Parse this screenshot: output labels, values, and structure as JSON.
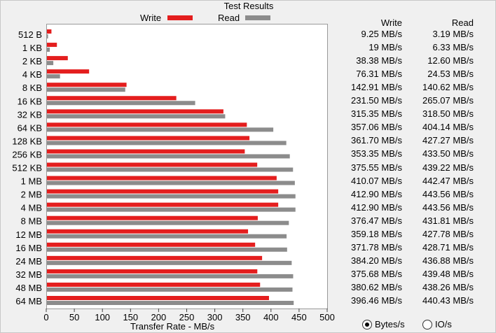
{
  "title": "Test Results",
  "legend": {
    "write": "Write",
    "read": "Read"
  },
  "colors": {
    "write": "#e41e1e",
    "read": "#8c8c8c"
  },
  "chart_data": {
    "type": "bar",
    "orientation": "horizontal",
    "title": "Test Results",
    "xlabel": "Transfer Rate - MB/s",
    "xlim": [
      0,
      500
    ],
    "xticks": [
      0,
      50,
      100,
      150,
      200,
      250,
      300,
      350,
      400,
      450,
      500
    ],
    "categories": [
      "512 B",
      "1 KB",
      "2 KB",
      "4 KB",
      "8 KB",
      "16 KB",
      "32 KB",
      "64 KB",
      "128 KB",
      "256 KB",
      "512 KB",
      "1 MB",
      "2 MB",
      "4 MB",
      "8 MB",
      "12 MB",
      "16 MB",
      "24 MB",
      "32 MB",
      "48 MB",
      "64 MB"
    ],
    "series": [
      {
        "name": "Write",
        "values": [
          9.25,
          19,
          38.38,
          76.31,
          142.91,
          231.5,
          315.35,
          357.06,
          361.7,
          353.35,
          375.55,
          410.07,
          412.9,
          412.9,
          376.47,
          359.18,
          371.78,
          384.2,
          375.68,
          380.62,
          396.46
        ]
      },
      {
        "name": "Read",
        "values": [
          3.19,
          6.33,
          12.6,
          24.53,
          140.62,
          265.07,
          318.5,
          404.14,
          427.27,
          433.5,
          439.22,
          442.47,
          443.56,
          443.56,
          431.81,
          427.78,
          428.71,
          436.88,
          439.48,
          438.26,
          440.43
        ]
      }
    ],
    "legend": "top"
  },
  "table": {
    "write_header": "Write",
    "read_header": "Read",
    "write_values": [
      "9.25 MB/s",
      "19 MB/s",
      "38.38 MB/s",
      "76.31 MB/s",
      "142.91 MB/s",
      "231.50 MB/s",
      "315.35 MB/s",
      "357.06 MB/s",
      "361.70 MB/s",
      "353.35 MB/s",
      "375.55 MB/s",
      "410.07 MB/s",
      "412.90 MB/s",
      "412.90 MB/s",
      "376.47 MB/s",
      "359.18 MB/s",
      "371.78 MB/s",
      "384.20 MB/s",
      "375.68 MB/s",
      "380.62 MB/s",
      "396.46 MB/s"
    ],
    "read_values": [
      "3.19 MB/s",
      "6.33 MB/s",
      "12.60 MB/s",
      "24.53 MB/s",
      "140.62 MB/s",
      "265.07 MB/s",
      "318.50 MB/s",
      "404.14 MB/s",
      "427.27 MB/s",
      "433.50 MB/s",
      "439.22 MB/s",
      "442.47 MB/s",
      "443.56 MB/s",
      "443.56 MB/s",
      "431.81 MB/s",
      "427.78 MB/s",
      "428.71 MB/s",
      "436.88 MB/s",
      "439.48 MB/s",
      "438.26 MB/s",
      "440.43 MB/s"
    ]
  },
  "units": {
    "options": [
      "Bytes/s",
      "IO/s"
    ],
    "selected": "Bytes/s"
  }
}
